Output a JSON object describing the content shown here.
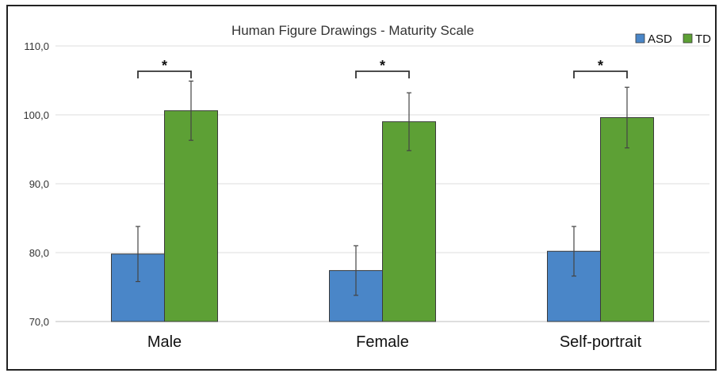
{
  "chart_data": {
    "type": "bar",
    "title": "Human Figure Drawings - Maturity Scale",
    "categories": [
      "Male",
      "Female",
      "Self-portrait"
    ],
    "series": [
      {
        "name": "ASD",
        "color": "#4a86c8",
        "values": [
          79.8,
          77.4,
          80.2
        ],
        "error": [
          4.0,
          3.6,
          3.6
        ]
      },
      {
        "name": "TD",
        "color": "#5da035",
        "values": [
          100.6,
          99.0,
          99.6
        ],
        "error": [
          4.3,
          4.2,
          4.4
        ]
      }
    ],
    "ylim": [
      70,
      110
    ],
    "yticks": [
      "70,0",
      "80,0",
      "90,0",
      "100,0",
      "110,0"
    ],
    "ytick_values": [
      70,
      80,
      90,
      100,
      110
    ],
    "significance": [
      "*",
      "*",
      "*"
    ],
    "legend": {
      "position": "top-right"
    },
    "grid": true
  }
}
